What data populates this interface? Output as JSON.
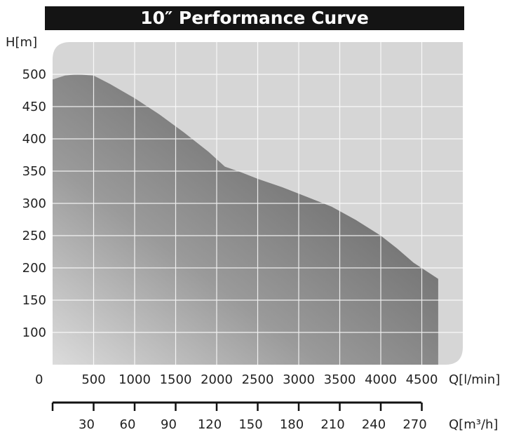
{
  "chart_data": {
    "type": "area",
    "title": "10″ Performance Curve",
    "ylabel": "H[m]",
    "xlabel": "Q[l/min]",
    "xlabel_secondary": "Q[m³/h]",
    "origin_label": "0",
    "grid": true,
    "xlim": [
      0,
      5000
    ],
    "ylim": [
      50,
      550
    ],
    "x_ticks": [
      "500",
      "1000",
      "1500",
      "2000",
      "2500",
      "3000",
      "3500",
      "4000",
      "4500"
    ],
    "y_ticks": [
      "100",
      "150",
      "200",
      "250",
      "300",
      "350",
      "400",
      "450",
      "500"
    ],
    "secondary_ticks": [
      "30",
      "60",
      "90",
      "120",
      "150",
      "180",
      "210",
      "240",
      "270"
    ],
    "series": [
      {
        "x": [
          0,
          150,
          300,
          500,
          700,
          1000,
          1300,
          1600,
          1900,
          2100,
          2300,
          2500,
          2800,
          3100,
          3400,
          3700,
          4000,
          4200,
          4400,
          4700
        ],
        "y": [
          492,
          498,
          500,
          498,
          485,
          463,
          438,
          410,
          380,
          357,
          348,
          338,
          325,
          310,
          295,
          274,
          250,
          230,
          208,
          183
        ]
      }
    ]
  }
}
